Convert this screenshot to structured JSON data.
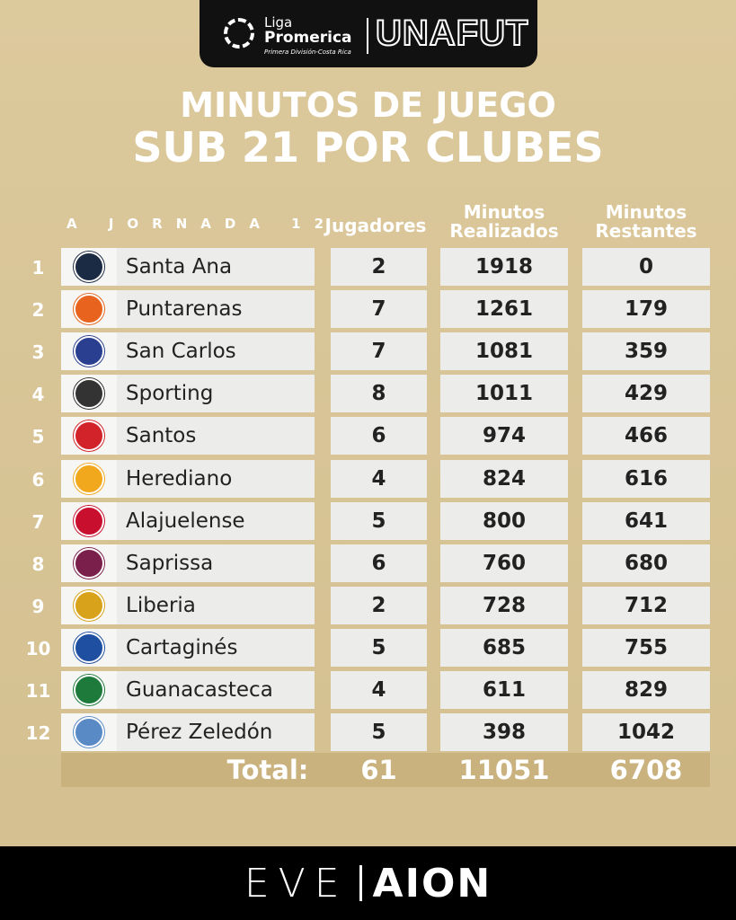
{
  "header": {
    "liga": "Liga",
    "promerica": "Promerica",
    "subtitle": "Primera División-Costa Rica",
    "unafut": "UNAFUT"
  },
  "title": {
    "line1": "MINUTOS DE JUEGO",
    "line2": "SUB 21 POR CLUBES"
  },
  "table": {
    "jornada": "A JORNADA 12",
    "headers": {
      "jugadores": "Jugadores",
      "realizados": "Minutos Realizados",
      "restantes": "Minutos Restantes"
    },
    "rows": [
      {
        "rank": "1",
        "club": "Santa Ana",
        "jugadores": "2",
        "realizados": "1918",
        "restantes": "0",
        "color": "#1c2b44"
      },
      {
        "rank": "2",
        "club": "Puntarenas",
        "jugadores": "7",
        "realizados": "1261",
        "restantes": "179",
        "color": "#e8641e"
      },
      {
        "rank": "3",
        "club": "San Carlos",
        "jugadores": "7",
        "realizados": "1081",
        "restantes": "359",
        "color": "#2a3f8f"
      },
      {
        "rank": "4",
        "club": "Sporting",
        "jugadores": "8",
        "realizados": "1011",
        "restantes": "429",
        "color": "#333333"
      },
      {
        "rank": "5",
        "club": "Santos",
        "jugadores": "6",
        "realizados": "974",
        "restantes": "466",
        "color": "#d2232a"
      },
      {
        "rank": "6",
        "club": "Herediano",
        "jugadores": "4",
        "realizados": "824",
        "restantes": "616",
        "color": "#f2a81d"
      },
      {
        "rank": "7",
        "club": "Alajuelense",
        "jugadores": "5",
        "realizados": "800",
        "restantes": "641",
        "color": "#c8102e"
      },
      {
        "rank": "8",
        "club": "Saprissa",
        "jugadores": "6",
        "realizados": "760",
        "restantes": "680",
        "color": "#7a1f4b"
      },
      {
        "rank": "9",
        "club": "Liberia",
        "jugadores": "2",
        "realizados": "728",
        "restantes": "712",
        "color": "#d9a21b"
      },
      {
        "rank": "10",
        "club": "Cartaginés",
        "jugadores": "5",
        "realizados": "685",
        "restantes": "755",
        "color": "#1f4fa0"
      },
      {
        "rank": "11",
        "club": "Guanacasteca",
        "jugadores": "4",
        "realizados": "611",
        "restantes": "829",
        "color": "#1e7a3a"
      },
      {
        "rank": "12",
        "club": "Pérez Zeledón",
        "jugadores": "5",
        "realizados": "398",
        "restantes": "1042",
        "color": "#5a8ac6"
      }
    ],
    "total": {
      "label": "Total:",
      "jugadores": "61",
      "realizados": "11051",
      "restantes": "6708"
    }
  },
  "footer": {
    "eve": "EVE",
    "aion": "AION"
  }
}
